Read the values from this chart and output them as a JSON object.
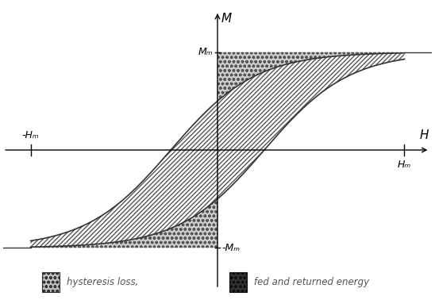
{
  "title": "",
  "xlabel": "H",
  "ylabel": "M",
  "xlim": [
    -5.5,
    5.5
  ],
  "ylim": [
    -1.5,
    1.5
  ],
  "Hm": 4.8,
  "Mm": 1.0,
  "neg_Hm_label": "-Hₘ",
  "pos_Hm_label": "Hₘ",
  "Mm_label": "Mₘ",
  "neg_Mm_label": "-Mₘ",
  "background_color": "#ffffff",
  "curve_color": "#333333",
  "legend_hysteresis_label": "hysteresis loss,",
  "legend_fed_label": "fed and returned energy"
}
